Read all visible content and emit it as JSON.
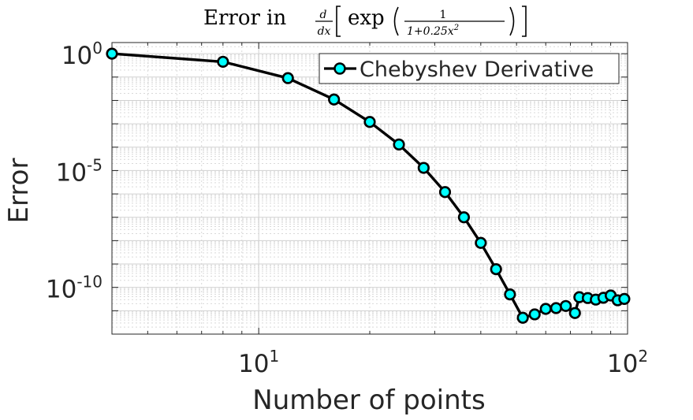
{
  "chart_data": {
    "type": "line",
    "title_prefix": "Error in",
    "title_frac_num": "d",
    "title_frac_den": "dx",
    "title_func": "exp",
    "title_inner_num": "1",
    "title_inner_den_base": "1+0.25x",
    "title_inner_den_exp": "2",
    "xlabel": "Number of points",
    "ylabel": "Error",
    "x_scale": "log",
    "y_scale": "log",
    "xlim": [
      4,
      100
    ],
    "ylim": [
      1e-12,
      3
    ],
    "x_ticks": [
      {
        "value": 10,
        "base": "10",
        "exp": "1"
      },
      {
        "value": 100,
        "base": "10",
        "exp": "2"
      }
    ],
    "y_ticks": [
      {
        "value": 1,
        "base": "10",
        "exp": "0"
      },
      {
        "value": 1e-05,
        "base": "10",
        "exp": "-5"
      },
      {
        "value": 1e-10,
        "base": "10",
        "exp": "-10"
      }
    ],
    "grid": true,
    "legend_position": "top-right",
    "colors": {
      "line": "#000000",
      "marker_fill": "#00ffff",
      "marker_edge": "#000000"
    },
    "series": [
      {
        "name": "Chebyshev Derivative",
        "points": [
          {
            "x": 4,
            "y": 1.0
          },
          {
            "x": 8,
            "y": 0.45
          },
          {
            "x": 12,
            "y": 0.09
          },
          {
            "x": 16,
            "y": 0.011
          },
          {
            "x": 20,
            "y": 0.0012
          },
          {
            "x": 24,
            "y": 0.00013
          },
          {
            "x": 28,
            "y": 1.3e-05
          },
          {
            "x": 32,
            "y": 1.2e-06
          },
          {
            "x": 36,
            "y": 1e-07
          },
          {
            "x": 40,
            "y": 8e-09
          },
          {
            "x": 44,
            "y": 6e-10
          },
          {
            "x": 48,
            "y": 5e-11
          },
          {
            "x": 52,
            "y": 5e-12
          },
          {
            "x": 56,
            "y": 7e-12
          },
          {
            "x": 60,
            "y": 1.2e-11
          },
          {
            "x": 64,
            "y": 1.3e-11
          },
          {
            "x": 68,
            "y": 1.6e-11
          },
          {
            "x": 72,
            "y": 8e-12
          },
          {
            "x": 74,
            "y": 3.8e-11
          },
          {
            "x": 78,
            "y": 3.5e-11
          },
          {
            "x": 82,
            "y": 3e-11
          },
          {
            "x": 86,
            "y": 3.6e-11
          },
          {
            "x": 90,
            "y": 4.5e-11
          },
          {
            "x": 94,
            "y": 2.8e-11
          },
          {
            "x": 98,
            "y": 3.2e-11
          }
        ]
      }
    ]
  }
}
